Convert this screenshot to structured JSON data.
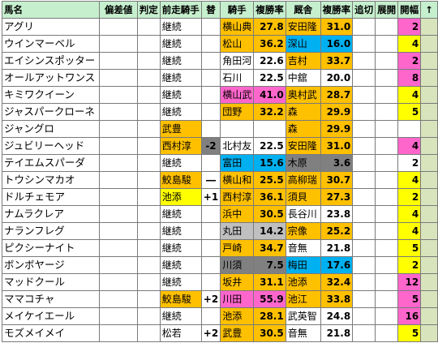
{
  "headers": {
    "horse": "馬名",
    "deviation": "偏差値",
    "judge": "判定",
    "prev_jockey": "前走騎手",
    "change": "替",
    "jockey": "騎手",
    "jockey_rate": "複勝率",
    "trainer": "厩舎",
    "trainer_rate": "複勝率",
    "chase": "追切",
    "develop": "展開",
    "opening": "開幅",
    "arrow": "↑"
  },
  "colors": {
    "header": "#c6efce",
    "orange": "#ffc000",
    "blue": "#00b0f0",
    "pink": "#ff66cc",
    "gray": "#808080",
    "light_gray": "#bfbfbf",
    "yellow": "#ffff00",
    "light_green": "#92d050",
    "last_col": "#d8e4bc"
  },
  "rows": [
    {
      "horse": "アグリ",
      "prev": "継続",
      "prev_bg": "",
      "change": "",
      "change_bg": "",
      "jockey": "横山典",
      "jockey_rate": "27.8",
      "jockey_bg": "orange",
      "trainer": "安田隆",
      "trainer_rate": "31.0",
      "trainer_bg": "orange",
      "kai": "2",
      "kai_bg": "pink"
    },
    {
      "horse": "ウインマーベル",
      "prev": "継続",
      "prev_bg": "",
      "change": "",
      "change_bg": "",
      "jockey": "松山",
      "jockey_rate": "36.2",
      "jockey_bg": "orange",
      "trainer": "深山",
      "trainer_rate": "16.0",
      "trainer_bg": "blue",
      "kai": "4",
      "kai_bg": "yellow"
    },
    {
      "horse": "エイシンスポッター",
      "prev": "継続",
      "prev_bg": "",
      "change": "",
      "change_bg": "",
      "jockey": "角田河",
      "jockey_rate": "22.6",
      "jockey_bg": "",
      "trainer": "吉村",
      "trainer_rate": "33.7",
      "trainer_bg": "orange",
      "kai": "2",
      "kai_bg": "pink"
    },
    {
      "horse": "オールアットワンス",
      "prev": "継続",
      "prev_bg": "",
      "change": "",
      "change_bg": "",
      "jockey": "石川",
      "jockey_rate": "22.5",
      "jockey_bg": "",
      "trainer": "中舘",
      "trainer_rate": "20.0",
      "trainer_bg": "",
      "kai": "8",
      "kai_bg": "pink"
    },
    {
      "horse": "キミワクイーン",
      "prev": "継続",
      "prev_bg": "",
      "change": "",
      "change_bg": "",
      "jockey": "横山武",
      "jockey_rate": "41.0",
      "jockey_bg": "pink",
      "trainer": "奥村武",
      "trainer_rate": "28.7",
      "trainer_bg": "orange",
      "kai": "4",
      "kai_bg": "yellow"
    },
    {
      "horse": "ジャスパークローネ",
      "prev": "継続",
      "prev_bg": "",
      "change": "",
      "change_bg": "",
      "jockey": "団野",
      "jockey_rate": "32.2",
      "jockey_bg": "orange",
      "trainer": "森",
      "trainer_rate": "29.9",
      "trainer_bg": "orange",
      "kai": "5",
      "kai_bg": "yellow"
    },
    {
      "horse": "ジャングロ",
      "prev": "武豊",
      "prev_bg": "orange",
      "change": "",
      "change_bg": "",
      "jockey": "",
      "jockey_rate": "",
      "jockey_bg": "",
      "trainer": "森",
      "trainer_rate": "29.9",
      "trainer_bg": "orange",
      "kai": "",
      "kai_bg": ""
    },
    {
      "horse": "ジュビリーヘッド",
      "prev": "西村淳",
      "prev_bg": "orange",
      "change": "-2",
      "change_bg": "gray",
      "jockey": "北村友",
      "jockey_rate": "22.5",
      "jockey_bg": "",
      "trainer": "安田隆",
      "trainer_rate": "31.0",
      "trainer_bg": "orange",
      "kai": "4",
      "kai_bg": "pink"
    },
    {
      "horse": "テイエムスパーダ",
      "prev": "継続",
      "prev_bg": "",
      "change": "",
      "change_bg": "",
      "jockey": "富田",
      "jockey_rate": "15.6",
      "jockey_bg": "blue",
      "trainer": "木原",
      "trainer_rate": "3.6",
      "trainer_bg": "gray",
      "kai": "2",
      "kai_bg": "white"
    },
    {
      "horse": "トウシンマカオ",
      "prev": "鮫島駿",
      "prev_bg": "orange",
      "change": "―",
      "change_bg": "",
      "jockey": "横山和",
      "jockey_rate": "25.5",
      "jockey_bg": "orange",
      "trainer": "高柳瑞",
      "trainer_rate": "30.7",
      "trainer_bg": "orange",
      "kai": "4",
      "kai_bg": "yellow"
    },
    {
      "horse": "ドルチェモア",
      "prev": "池添",
      "prev_bg": "yellow",
      "change": "+1",
      "change_bg": "",
      "jockey": "西村淳",
      "jockey_rate": "36.1",
      "jockey_bg": "orange",
      "trainer": "須貝",
      "trainer_rate": "27.3",
      "trainer_bg": "orange",
      "kai": "2",
      "kai_bg": "yellow"
    },
    {
      "horse": "ナムラクレア",
      "prev": "継続",
      "prev_bg": "",
      "change": "",
      "change_bg": "",
      "jockey": "浜中",
      "jockey_rate": "30.5",
      "jockey_bg": "orange",
      "trainer": "長谷川",
      "trainer_rate": "23.8",
      "trainer_bg": "",
      "kai": "4",
      "kai_bg": "yellow"
    },
    {
      "horse": "ナランフレグ",
      "prev": "継続",
      "prev_bg": "",
      "change": "",
      "change_bg": "",
      "jockey": "丸田",
      "jockey_rate": "14.2",
      "jockey_bg": "lgray",
      "trainer": "宗像",
      "trainer_rate": "25.2",
      "trainer_bg": "orange",
      "kai": "4",
      "kai_bg": "yellow"
    },
    {
      "horse": "ピクシーナイト",
      "prev": "継続",
      "prev_bg": "",
      "change": "",
      "change_bg": "",
      "jockey": "戸崎",
      "jockey_rate": "34.7",
      "jockey_bg": "orange",
      "trainer": "音無",
      "trainer_rate": "21.8",
      "trainer_bg": "",
      "kai": "5",
      "kai_bg": "yellow"
    },
    {
      "horse": "ボンボヤージ",
      "prev": "継続",
      "prev_bg": "",
      "change": "",
      "change_bg": "",
      "jockey": "川須",
      "jockey_rate": "7.5",
      "jockey_bg": "gray",
      "trainer": "梅田",
      "trainer_rate": "17.6",
      "trainer_bg": "blue",
      "kai": "2",
      "kai_bg": "yellow"
    },
    {
      "horse": "マッドクール",
      "prev": "継続",
      "prev_bg": "",
      "change": "",
      "change_bg": "",
      "jockey": "坂井",
      "jockey_rate": "31.1",
      "jockey_bg": "orange",
      "trainer": "池添",
      "trainer_rate": "32.4",
      "trainer_bg": "orange",
      "kai": "12",
      "kai_bg": "pink"
    },
    {
      "horse": "ママコチャ",
      "prev": "鮫島駿",
      "prev_bg": "orange",
      "change": "+2",
      "change_bg": "",
      "jockey": "川田",
      "jockey_rate": "55.9",
      "jockey_bg": "pink",
      "trainer": "池江",
      "trainer_rate": "33.8",
      "trainer_bg": "orange",
      "kai": "5",
      "kai_bg": "pink"
    },
    {
      "horse": "メイケイエール",
      "prev": "継続",
      "prev_bg": "",
      "change": "",
      "change_bg": "",
      "jockey": "池添",
      "jockey_rate": "28.1",
      "jockey_bg": "orange",
      "trainer": "武英智",
      "trainer_rate": "24.8",
      "trainer_bg": "",
      "kai": "16",
      "kai_bg": "pink"
    },
    {
      "horse": "モズメイメイ",
      "prev": "松若",
      "prev_bg": "",
      "change": "+2",
      "change_bg": "",
      "jockey": "武豊",
      "jockey_rate": "30.5",
      "jockey_bg": "orange",
      "trainer": "音無",
      "trainer_rate": "21.8",
      "trainer_bg": "",
      "kai": "5",
      "kai_bg": "yellow"
    }
  ]
}
